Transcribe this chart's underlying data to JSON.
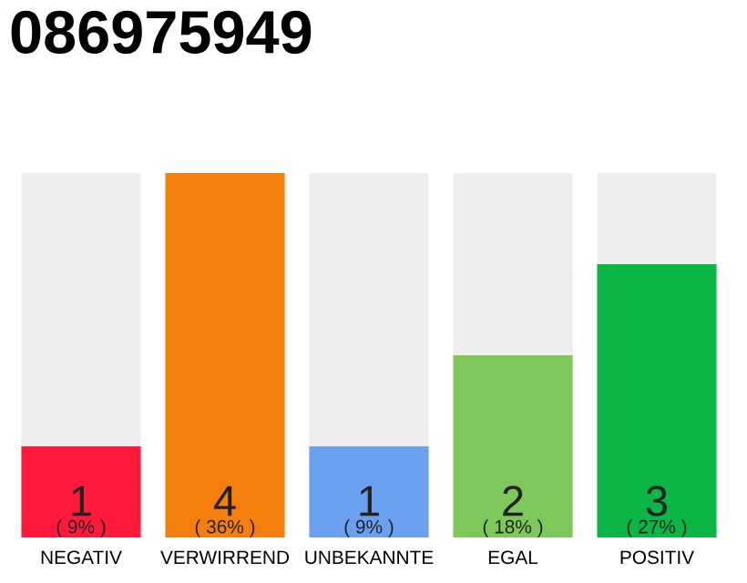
{
  "chart_data": {
    "type": "bar",
    "title": "086975949",
    "categories": [
      "NEGATIV",
      "VERWIRREND",
      "UNBEKANNTE",
      "EGAL",
      "POSITIV"
    ],
    "stacked": true,
    "series": [
      {
        "colors": [
          "#ff1a3c",
          "#f47f0c",
          "#6aa0ee",
          "#7ec85a",
          "#0ab646"
        ],
        "values": [
          1,
          4,
          1,
          2,
          3
        ],
        "value_labels": [
          "1\n( 9% )",
          "4\n( 36% )",
          "1\n( 9% )",
          "2\n( 18% )",
          "3\n( 27% )"
        ]
      },
      {
        "color": "#eeeeee",
        "values": [
          3,
          0,
          3,
          2,
          1
        ]
      }
    ],
    "ylim": [
      0,
      4
    ],
    "grid": false,
    "legend": false
  }
}
